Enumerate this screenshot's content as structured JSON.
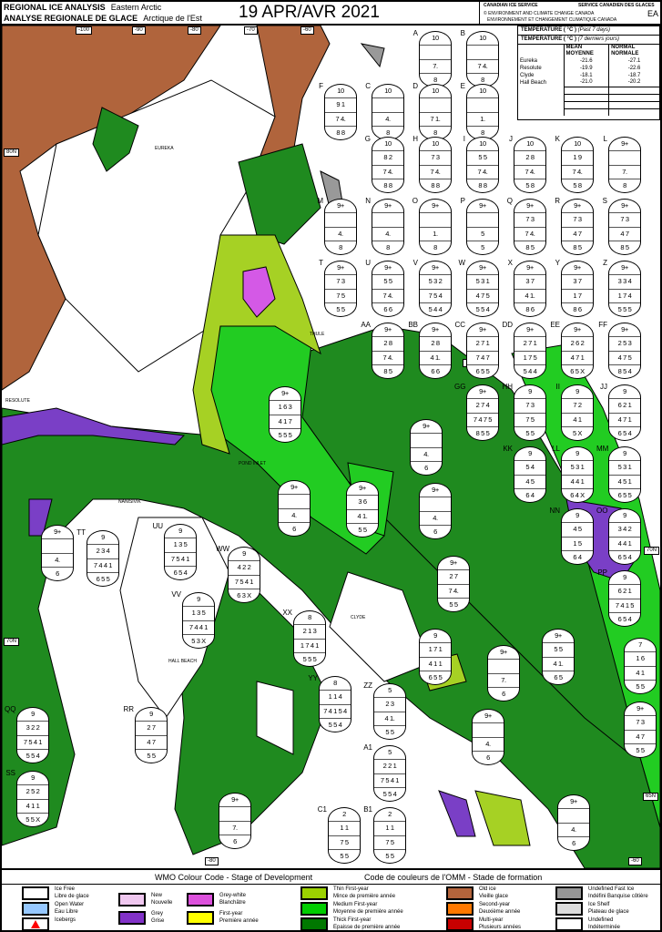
{
  "header": {
    "title_en": "REGIONAL ICE ANALYSIS",
    "region_en": "Eastern Arctic",
    "title_fr": "ANALYSE REGIONALE DE GLACE",
    "region_fr": "Arctique de l'Est",
    "date": "19 APR/AVR 2021",
    "agency_en": "CANADIAN ICE SERVICE",
    "agency_fr": "SERVICE CANADIEN DES GLACES",
    "dept_en": "© ENVIRONMENT AND CLIMATE CHANGE CANADA",
    "dept_fr": "ENVIRONNEMENT ET CHANGEMENT CLIMATIQUE CANADA",
    "code": "EA"
  },
  "temperature": {
    "title_en": "TEMPERATURE ( °C )",
    "period_en": "(Past 7 days)",
    "title_fr": "TEMPERATURE ( °C )",
    "period_fr": "(7 derniers jours)",
    "col_mean": "MEAN MOYENNE",
    "col_normal": "NORMAL NORMALE",
    "rows": [
      {
        "station": "Eureka",
        "mean": "-21.6",
        "normal": "-27.1"
      },
      {
        "station": "Resolute",
        "mean": "-19.9",
        "normal": "-22.6"
      },
      {
        "station": "Clyde",
        "mean": "-18.1",
        "normal": "-18.7"
      },
      {
        "station": "Hall Beach",
        "mean": "-21.0",
        "normal": "-20.2"
      }
    ]
  },
  "map": {
    "longitudes": [
      "-100",
      "-90",
      "-80",
      "-70",
      "-60"
    ],
    "bottom_ticks": [
      "-80",
      "-60"
    ],
    "latitudes": [
      "80N",
      "75N",
      "70N",
      "70N",
      "65N"
    ],
    "places": [
      "EUREKA",
      "RESOLUTE",
      "THULE",
      "POND INLET",
      "CLYDE",
      "HALL BEACH",
      "NANISIVIK"
    ],
    "colors": {
      "old_ice": "#b0643c",
      "thick_fy": "#1f8a1f",
      "medium_fy": "#22cc22",
      "thin_fy": "#a6d124",
      "grey": "#7a3fc6",
      "grey_white": "#d459e6",
      "land": "#ffffff",
      "fast_ice_undefined": "#999999"
    },
    "eggs": [
      {
        "id": "A",
        "c": [
          "10",
          "",
          "7.",
          "8"
        ]
      },
      {
        "id": "B",
        "c": [
          "10",
          "",
          "7 4.",
          "8"
        ]
      },
      {
        "id": "C",
        "c": [
          "10",
          "",
          "4.",
          "8"
        ]
      },
      {
        "id": "D",
        "c": [
          "10",
          "",
          "7 1.",
          "8"
        ]
      },
      {
        "id": "E",
        "c": [
          "10",
          "",
          "1.",
          "8"
        ]
      },
      {
        "id": "F",
        "c": [
          "10",
          "9 1",
          "7 4.",
          "8 8"
        ]
      },
      {
        "id": "G",
        "c": [
          "10",
          "8 2",
          "7 4.",
          "8 8"
        ]
      },
      {
        "id": "H",
        "c": [
          "10",
          "7 3",
          "7 4.",
          "8 8"
        ]
      },
      {
        "id": "I",
        "c": [
          "10",
          "5 5",
          "7 4.",
          "8 8"
        ]
      },
      {
        "id": "J",
        "c": [
          "10",
          "2 8",
          "7 4.",
          "5 8"
        ]
      },
      {
        "id": "K",
        "c": [
          "10",
          "1 9",
          "7 4.",
          "5 8"
        ]
      },
      {
        "id": "L",
        "c": [
          "9+",
          "",
          "7.",
          "8"
        ]
      },
      {
        "id": "M",
        "c": [
          "9+",
          "",
          "4.",
          "8"
        ]
      },
      {
        "id": "N",
        "c": [
          "9+",
          "",
          "4.",
          "8"
        ]
      },
      {
        "id": "O",
        "c": [
          "9+",
          "",
          "1.",
          "8"
        ]
      },
      {
        "id": "P",
        "c": [
          "9+",
          "",
          "5",
          "5"
        ]
      },
      {
        "id": "Q",
        "c": [
          "9+",
          "7 3",
          "7 4.",
          "8 5"
        ]
      },
      {
        "id": "R",
        "c": [
          "9+",
          "7 3",
          "4 7",
          "8 5"
        ]
      },
      {
        "id": "S",
        "c": [
          "9+",
          "7 3",
          "4 7",
          "8 5"
        ]
      },
      {
        "id": "T",
        "c": [
          "9+",
          "7 3",
          "7 5",
          "5 5"
        ]
      },
      {
        "id": "U",
        "c": [
          "9+",
          "5 5",
          "7 4.",
          "6 6"
        ]
      },
      {
        "id": "V",
        "c": [
          "9+",
          "5 3 2",
          "7 5 4",
          "5 4 4"
        ]
      },
      {
        "id": "W",
        "c": [
          "9+",
          "5 3 1",
          "4 7 5",
          "5 5 4"
        ]
      },
      {
        "id": "X",
        "c": [
          "9+",
          "3 7",
          "4 1.",
          "8 6"
        ]
      },
      {
        "id": "Y",
        "c": [
          "9+",
          "3 7",
          "1 7",
          "8 6"
        ]
      },
      {
        "id": "Z",
        "c": [
          "9+",
          "3 3 4",
          "1 7 4",
          "5 5 5"
        ]
      },
      {
        "id": "AA",
        "c": [
          "9+",
          "2 8",
          "7 4.",
          "8 5"
        ]
      },
      {
        "id": "BB",
        "c": [
          "9+",
          "2 8",
          "4 1.",
          "6 6"
        ]
      },
      {
        "id": "CC",
        "c": [
          "9+",
          "2 7 1",
          "7 4 7",
          "6 5 5"
        ]
      },
      {
        "id": "DD",
        "c": [
          "9+",
          "2 7 1",
          "1 7 5",
          "5 4 4"
        ]
      },
      {
        "id": "EE",
        "c": [
          "9+",
          "2 6 2",
          "4 7 1",
          "6 5 X"
        ]
      },
      {
        "id": "FF",
        "c": [
          "9+",
          "2 5 3",
          "4 7 5",
          "8 5 4"
        ]
      },
      {
        "id": "GG",
        "c": [
          "9+",
          "2 7 4",
          "7 4 7 5",
          "8 5 5"
        ]
      },
      {
        "id": "HH",
        "c": [
          "9",
          "7 3",
          "7 5",
          "5 5"
        ]
      },
      {
        "id": "II",
        "c": [
          "9",
          "7 2",
          "4 1",
          "5 X"
        ]
      },
      {
        "id": "JJ",
        "c": [
          "9",
          "6 2 1",
          "4 7 1",
          "6 5 4"
        ]
      },
      {
        "id": "KK",
        "c": [
          "9",
          "5 4",
          "4 5",
          "6 4"
        ]
      },
      {
        "id": "LL",
        "c": [
          "9",
          "5 3 1",
          "4 4 1",
          "6 4 X"
        ]
      },
      {
        "id": "MM",
        "c": [
          "9",
          "5 3 1",
          "4 5 1",
          "6 5 5"
        ]
      },
      {
        "id": "NN",
        "c": [
          "9",
          "4 5",
          "1 5",
          "6 4"
        ]
      },
      {
        "id": "OO",
        "c": [
          "9",
          "3 4 2",
          "4 4 1",
          "6 5 4"
        ]
      },
      {
        "id": "PP",
        "c": [
          "9",
          "6 2 1",
          "7 4 1 5",
          "6 5 4"
        ]
      },
      {
        "id": "TT",
        "c": [
          "9",
          "2 3 4",
          "7 4 4 1",
          "6 5 5"
        ]
      },
      {
        "id": "UU",
        "c": [
          "9",
          "1 3 5",
          "7 5 4 1",
          "6 5 4"
        ]
      },
      {
        "id": "VV",
        "c": [
          "9",
          "1 3 5",
          "7 4 4 1",
          "5 3 X"
        ]
      },
      {
        "id": "WW",
        "c": [
          "9",
          "4 2 2",
          "7 5 4 1",
          "6 3 X"
        ]
      },
      {
        "id": "XX",
        "c": [
          "8",
          "2 1 3",
          "1 7 4 1",
          "5 5 5"
        ]
      },
      {
        "id": "YY",
        "c": [
          "8",
          "1 1 4",
          "7 4 1 5 4",
          "5 5 4"
        ]
      },
      {
        "id": "ZZ",
        "c": [
          "5",
          "2 3",
          "4 1.",
          "5 5"
        ]
      },
      {
        "id": "QQ",
        "c": [
          "9",
          "3 2 2",
          "7 5 4 1",
          "5 5 4"
        ]
      },
      {
        "id": "RR",
        "c": [
          "9",
          "2 7",
          "4 7",
          "5 5"
        ]
      },
      {
        "id": "SS",
        "c": [
          "9",
          "2 5 2",
          "4 1 1",
          "5 5 X"
        ]
      },
      {
        "id": "A1",
        "c": [
          "5",
          "2 2 1",
          "7 5 4 1",
          "5 5 4"
        ]
      },
      {
        "id": "B1",
        "c": [
          "2",
          "1 1",
          "7 5",
          "5 5"
        ]
      },
      {
        "id": "C1",
        "c": [
          "2",
          "1 1",
          "7 5",
          "5 5"
        ]
      },
      {
        "id": "",
        "c": [
          "9+",
          "1 6 3",
          "4 1 7",
          "5 5 5"
        ]
      },
      {
        "id": "",
        "c": [
          "9+",
          "",
          "4.",
          "6"
        ]
      },
      {
        "id": "",
        "c": [
          "9+",
          "3 6",
          "4 1.",
          "5 5"
        ]
      },
      {
        "id": "",
        "c": [
          "9+",
          "",
          "4.",
          "6"
        ]
      },
      {
        "id": "",
        "c": [
          "9+",
          "",
          "4.",
          "6"
        ]
      },
      {
        "id": "",
        "c": [
          "9+",
          "",
          "4.",
          "6"
        ]
      },
      {
        "id": "",
        "c": [
          "9+",
          "2 7",
          "7 4.",
          "5 5"
        ]
      },
      {
        "id": "",
        "c": [
          "9+",
          "",
          "7.",
          "6"
        ]
      },
      {
        "id": "",
        "c": [
          "9+",
          "5 5",
          "4 1.",
          "6 5"
        ]
      },
      {
        "id": "",
        "c": [
          "9",
          "1 7 1",
          "4 1 1",
          "6 5 5"
        ]
      },
      {
        "id": "",
        "c": [
          "7",
          "1 6",
          "4 1",
          "5 5"
        ]
      },
      {
        "id": "",
        "c": [
          "9+",
          "7 3",
          "4 7",
          "5 5"
        ]
      },
      {
        "id": "",
        "c": [
          "9+",
          "",
          "4.",
          "6"
        ]
      },
      {
        "id": "",
        "c": [
          "9+",
          "",
          "4.",
          "6"
        ]
      },
      {
        "id": "",
        "c": [
          "9+",
          "",
          "7.",
          "6"
        ]
      }
    ]
  },
  "legend": {
    "title_en": "WMO Colour Code - Stage of Development",
    "title_fr": "Code de couleurs de l'OMM - Stade de formation",
    "items": [
      {
        "en": "Ice Free",
        "fr": "Libre de glace",
        "color": "#ffffff"
      },
      {
        "en": "Open Water",
        "fr": "Eau Libre",
        "color": "#96c8ff"
      },
      {
        "en": "Icebergs",
        "fr": "",
        "color": "#ff0000"
      },
      {
        "en": "New",
        "fr": "Nouvelle",
        "color": "#f0c8f0"
      },
      {
        "en": "Grey",
        "fr": "Grise",
        "color": "#8232c8"
      },
      {
        "en": "Grey-white",
        "fr": "Blanchâtre",
        "color": "#dc50dc"
      },
      {
        "en": "First-year",
        "fr": "Première année",
        "color": "#ffff00"
      },
      {
        "en": "Thin First-year",
        "fr": "Mince de première année",
        "color": "#9bd200"
      },
      {
        "en": "Medium First-year",
        "fr": "Moyenne de première année",
        "color": "#00cd00"
      },
      {
        "en": "Thick First-year",
        "fr": "Epaisse de première année",
        "color": "#007800"
      },
      {
        "en": "Old ice",
        "fr": "Vieille glace",
        "color": "#b4643c"
      },
      {
        "en": "Second-year",
        "fr": "Deuxième année",
        "color": "#ff7800"
      },
      {
        "en": "Multi-year",
        "fr": "Plusieurs années",
        "color": "#c80000"
      },
      {
        "en": "Undefined Fast Ice",
        "fr": "Indéfini Banquise côtière",
        "color": "#969696"
      },
      {
        "en": "Ice Shelf",
        "fr": "Plateau de glace",
        "color": "#dcdcdc"
      },
      {
        "en": "Undefined",
        "fr": "Indéterminée",
        "color": "#ffffff"
      }
    ]
  }
}
